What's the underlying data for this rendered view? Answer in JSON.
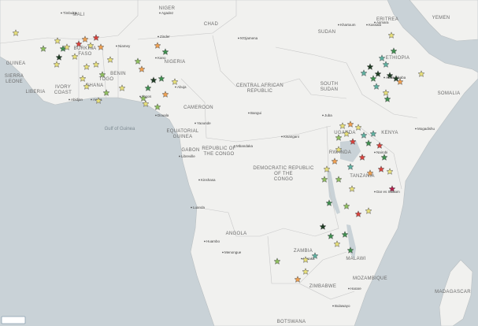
{
  "map": {
    "countries": [
      "MALI",
      "NIGER",
      "CHAD",
      "SUDAN",
      "ERITREA",
      "YEMEN",
      "BURKINA FASO",
      "NIGERIA",
      "GUINEA",
      "SIERRA LEONE",
      "LIBERIA",
      "IVORY COAST",
      "GHANA",
      "BENIN",
      "TOGO",
      "CAMEROON",
      "CENTRAL AFRICAN REPUBLIC",
      "SOUTH SUDAN",
      "ETHIOPIA",
      "SOMALIA",
      "KENYA",
      "UGANDA",
      "RWANDA",
      "TANZANIA",
      "EQUATORIAL GUINEA",
      "GABON",
      "REPUBLIC OF THE CONGO",
      "DEMOCRATIC REPUBLIC OF THE CONGO",
      "ANGOLA",
      "ZAMBIA",
      "MALAWI",
      "MOZAMBIQUE",
      "ZIMBABWE",
      "BOTSWANA",
      "MADAGASCAR"
    ],
    "water": [
      "Gulf of Guinea"
    ],
    "cities": [
      "Timbuktu",
      "Agadez",
      "Zinder",
      "Niamey",
      "Kano",
      "Abuja",
      "Lagos",
      "Accra",
      "Abidjan",
      "N'Djamena",
      "Khartoum",
      "Asmara",
      "Kassala",
      "Bangui",
      "Juba",
      "Douala",
      "Yaounde",
      "Libreville",
      "Kinshasa",
      "Luanda",
      "Mbandaka",
      "Mogadishu",
      "Dar es Salaam",
      "Lusaka",
      "Harare",
      "Huambo",
      "Menongue",
      "Nairobi",
      "Addis Ababa",
      "Kisangani",
      "Bulawayo"
    ]
  }
}
